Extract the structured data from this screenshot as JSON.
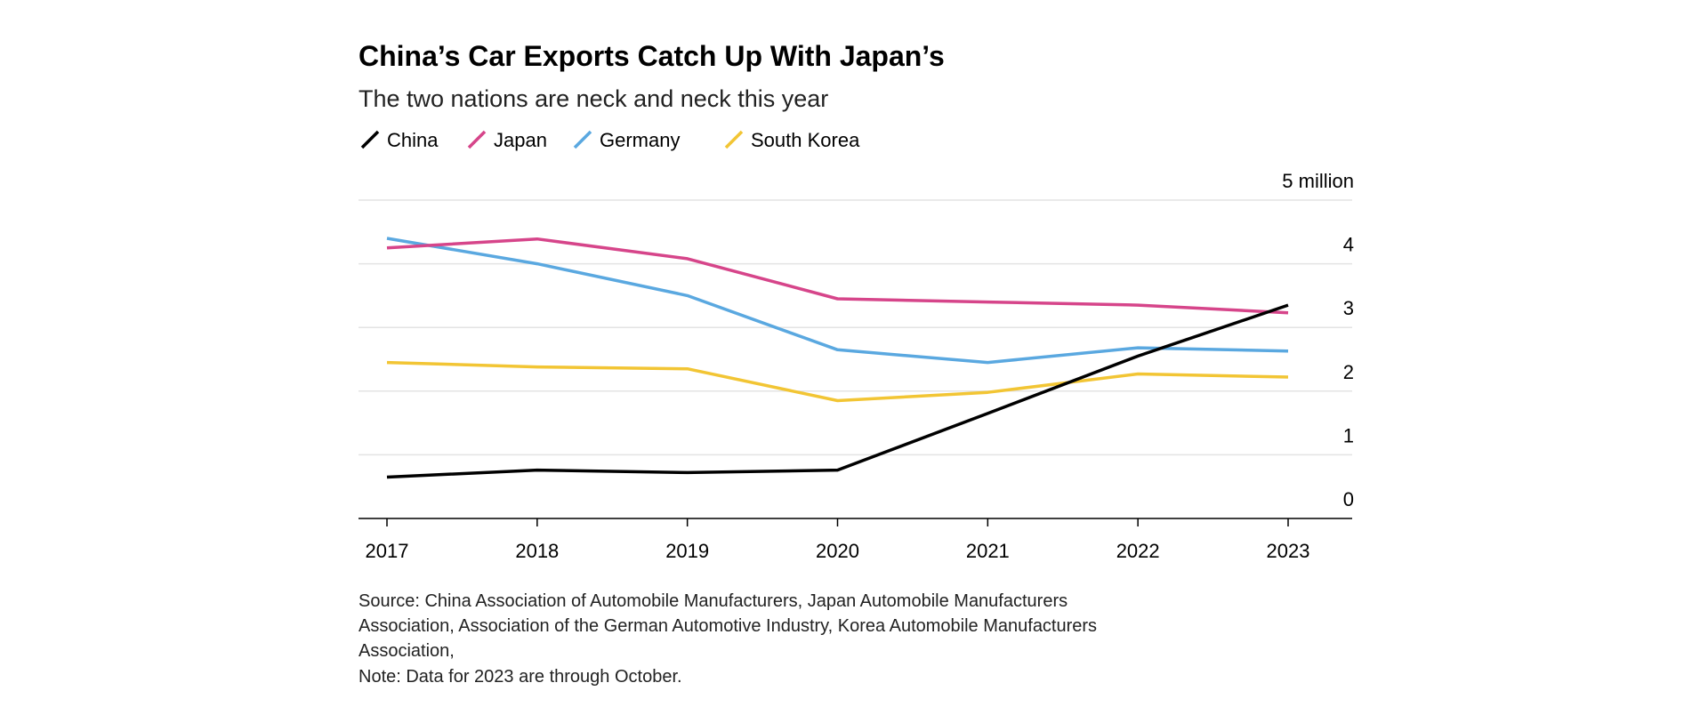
{
  "chart_data": {
    "type": "line",
    "title": "China’s Car Exports Catch Up With Japan’s",
    "subtitle": "The two nations are neck and neck this year",
    "x": [
      "2017",
      "2018",
      "2019",
      "2020",
      "2021",
      "2022",
      "2023"
    ],
    "ylim": [
      0,
      5
    ],
    "yticks": [
      {
        "value": 0,
        "label": "0"
      },
      {
        "value": 1,
        "label": "1"
      },
      {
        "value": 2,
        "label": "2"
      },
      {
        "value": 3,
        "label": "3"
      },
      {
        "value": 4,
        "label": "4"
      },
      {
        "value": 5,
        "label": "5 million"
      }
    ],
    "ylabel": "",
    "xlabel": "",
    "grid": true,
    "legend_position": "top-left",
    "series": [
      {
        "name": "China",
        "color": "#000000",
        "values": [
          0.65,
          0.76,
          0.72,
          0.76,
          1.65,
          2.55,
          3.35
        ]
      },
      {
        "name": "Japan",
        "color": "#d6458a",
        "values": [
          4.25,
          4.39,
          4.08,
          3.45,
          3.4,
          3.35,
          3.23
        ]
      },
      {
        "name": "Germany",
        "color": "#5aa8e0",
        "values": [
          4.4,
          4.0,
          3.5,
          2.65,
          2.45,
          2.68,
          2.63
        ]
      },
      {
        "name": "South Korea",
        "color": "#f2c534",
        "values": [
          2.45,
          2.38,
          2.35,
          1.85,
          1.98,
          2.27,
          2.22
        ]
      }
    ]
  },
  "source": {
    "lines": [
      "Source: China Association of Automobile Manufacturers, Japan Automobile Manufacturers",
      "Association, Association of the German Automotive Industry, Korea Automobile Manufacturers",
      "Association,",
      "Note: Data for 2023 are through October."
    ]
  }
}
